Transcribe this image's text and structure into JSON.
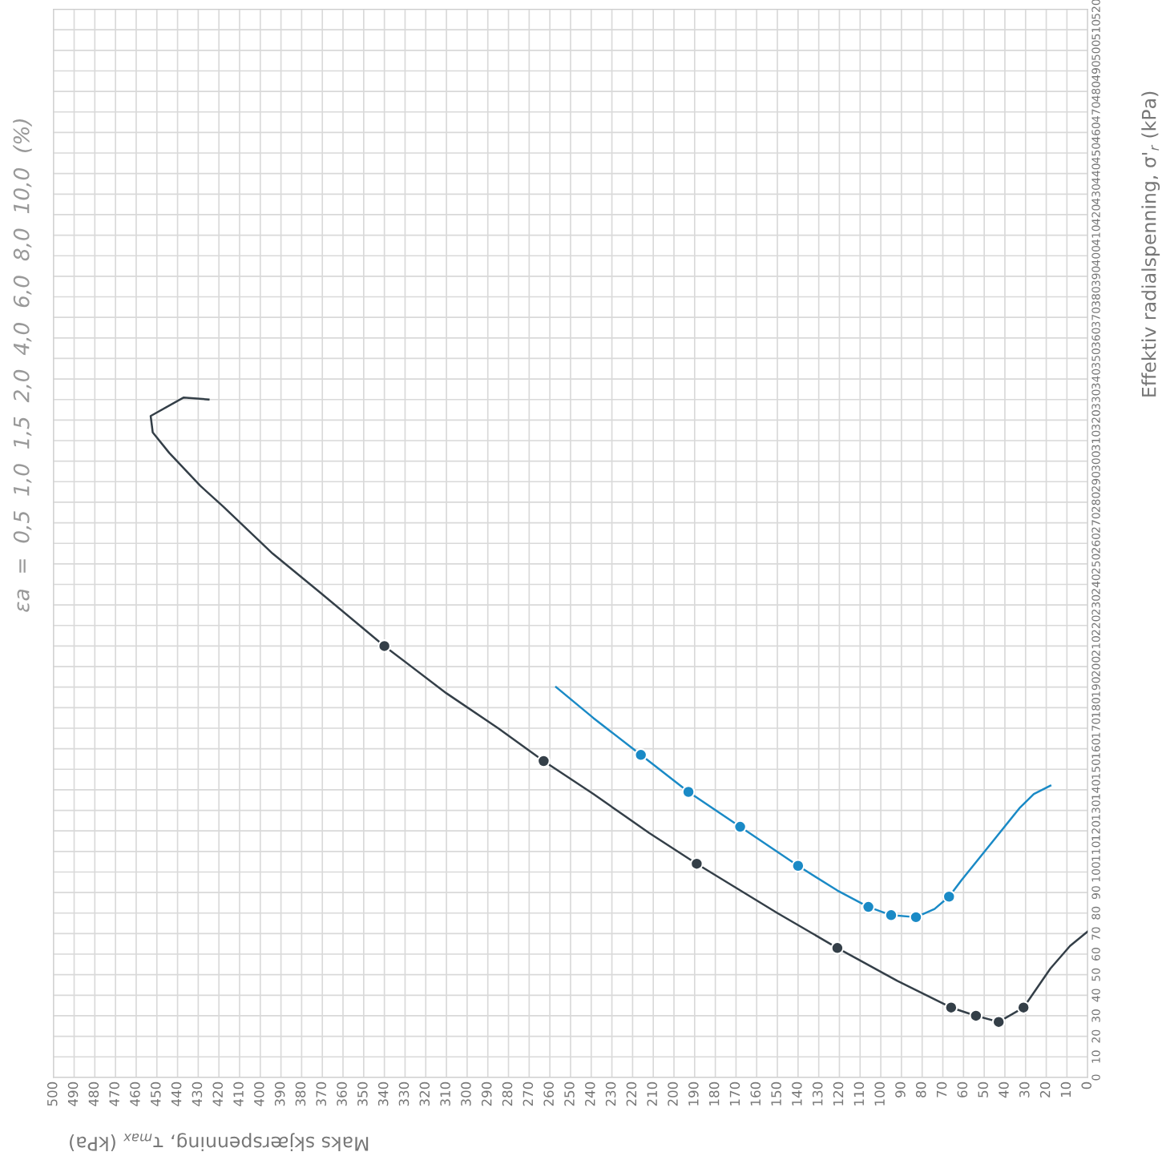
{
  "chart_data": {
    "type": "line",
    "xlabel": "Maks skjærspenning, τ$_{max}$ (kPa)",
    "ylabel": "Effektiv radialspenning, σ'$_{r}$ (kPa)",
    "annotations": [
      "εa  =  0,5  1,0  1,5  2,0  4,0  6,0  8,0  10,0  (%)"
    ],
    "xlim": [
      500,
      0
    ],
    "ylim": [
      0,
      520
    ],
    "xticks": [
      0,
      10,
      20,
      30,
      40,
      50,
      60,
      70,
      80,
      90,
      100,
      110,
      120,
      130,
      140,
      150,
      160,
      170,
      180,
      190,
      200,
      210,
      220,
      230,
      240,
      250,
      260,
      270,
      280,
      290,
      300,
      310,
      320,
      330,
      340,
      350,
      360,
      370,
      380,
      390,
      400,
      410,
      420,
      430,
      440,
      450,
      460,
      470,
      480,
      490,
      500
    ],
    "yticks": [
      0,
      10,
      20,
      30,
      40,
      50,
      60,
      70,
      80,
      90,
      100,
      110,
      120,
      130,
      140,
      150,
      160,
      170,
      180,
      190,
      200,
      210,
      220,
      230,
      240,
      250,
      260,
      270,
      280,
      290,
      300,
      310,
      320,
      330,
      340,
      350,
      360,
      370,
      380,
      390,
      400,
      410,
      420,
      430,
      440,
      450,
      460,
      470,
      480,
      490,
      500,
      510,
      520
    ],
    "grid": true,
    "legend": false,
    "line_style": "solid",
    "series": [
      {
        "color": "#343f48",
        "x": [
          425,
          437,
          453,
          452,
          444,
          429,
          418,
          394,
          371,
          340,
          310,
          285,
          263,
          239,
          212,
          189,
          150,
          121,
          92,
          66,
          54,
          43,
          31,
          18,
          8.5,
          0
        ],
        "values": [
          330,
          331,
          322,
          314,
          304,
          288,
          278,
          255,
          236,
          210,
          187,
          170,
          154,
          138,
          119,
          104,
          80,
          63,
          47,
          34,
          30,
          27,
          34,
          53,
          64,
          71
        ]
      },
      {
        "type": "scatter",
        "marker": "circle",
        "color": "#343f48",
        "x": [
          340,
          263,
          189,
          121,
          66,
          54,
          43,
          31
        ],
        "values": [
          210,
          154,
          104,
          63,
          34,
          30,
          27,
          34
        ]
      },
      {
        "color": "#1a8ac6",
        "x": [
          257,
          239,
          216,
          193,
          168,
          140,
          121,
          106,
          95,
          83,
          74,
          67,
          61,
          45,
          33,
          26,
          18
        ],
        "values": [
          190,
          175,
          157,
          139,
          122,
          103,
          91,
          83,
          79,
          78,
          82,
          88,
          96,
          116,
          131,
          138,
          142
        ]
      },
      {
        "type": "scatter",
        "marker": "circle",
        "color": "#1a8ac6",
        "x": [
          216,
          193,
          168,
          140,
          106,
          95,
          83,
          67
        ],
        "values": [
          157,
          139,
          122,
          103,
          83,
          79,
          78,
          88
        ]
      }
    ]
  }
}
